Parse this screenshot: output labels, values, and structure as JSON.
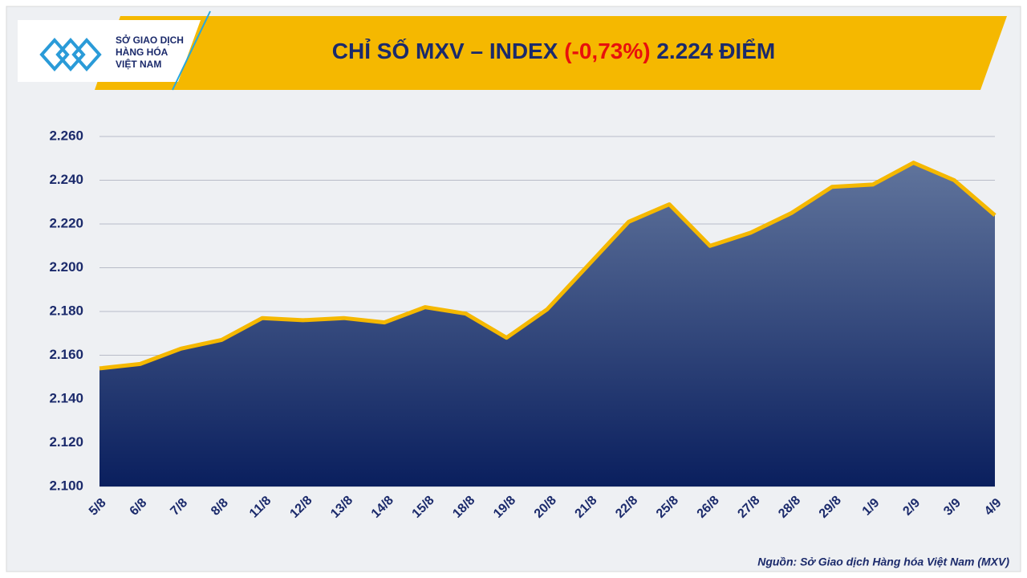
{
  "chart_data": {
    "type": "area",
    "title": "CHỈ SỐ MXV – INDEX",
    "title_change": "(-0,73%)",
    "title_value": "2.224 ĐIỂM",
    "categories": [
      "5/8",
      "6/8",
      "7/8",
      "8/8",
      "11/8",
      "12/8",
      "13/8",
      "14/8",
      "15/8",
      "18/8",
      "19/8",
      "20/8",
      "21/8",
      "22/8",
      "25/8",
      "26/8",
      "27/8",
      "28/8",
      "29/8",
      "1/9",
      "2/9",
      "3/9",
      "4/9"
    ],
    "values": [
      2154,
      2156,
      2163,
      2167,
      2177,
      2176,
      2177,
      2175,
      2182,
      2179,
      2168,
      2181,
      2201,
      2221,
      2229,
      2210,
      2216,
      2225,
      2237,
      2238,
      2248,
      2240,
      2224
    ],
    "color": "#f5b800",
    "fill_top": "#60749c",
    "fill_bottom": "#0a1f5e",
    "change_color": "#e8100c",
    "ylim": [
      2100,
      2260
    ],
    "yticks": [
      {
        "value": 2100,
        "label": "2.100"
      },
      {
        "value": 2120,
        "label": "2.120"
      },
      {
        "value": 2140,
        "label": "2.140"
      },
      {
        "value": 2160,
        "label": "2.160"
      },
      {
        "value": 2180,
        "label": "2.180"
      },
      {
        "value": 2200,
        "label": "2.200"
      },
      {
        "value": 2220,
        "label": "2.220"
      },
      {
        "value": 2240,
        "label": "2.240"
      },
      {
        "value": 2260,
        "label": "2.260"
      }
    ],
    "grid": true,
    "source": "Nguồn: Sở Giao dịch Hàng hóa Việt Nam (MXV)"
  },
  "logo": {
    "lines": [
      "SỞ GIAO DỊCH",
      "HÀNG HÓA",
      "VIỆT NAM"
    ]
  }
}
